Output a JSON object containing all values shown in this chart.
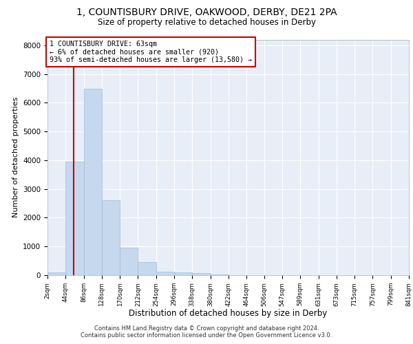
{
  "title_line1": "1, COUNTISBURY DRIVE, OAKWOOD, DERBY, DE21 2PA",
  "title_line2": "Size of property relative to detached houses in Derby",
  "xlabel": "Distribution of detached houses by size in Derby",
  "ylabel": "Number of detached properties",
  "footer_line1": "Contains HM Land Registry data © Crown copyright and database right 2024.",
  "footer_line2": "Contains public sector information licensed under the Open Government Licence v3.0.",
  "annotation_line1": "1 COUNTISBURY DRIVE: 63sqm",
  "annotation_line2": "← 6% of detached houses are smaller (920)",
  "annotation_line3": "93% of semi-detached houses are larger (13,580) →",
  "bar_edges": [
    2,
    44,
    86,
    128,
    170,
    212,
    254,
    296,
    338,
    380,
    422,
    464,
    506,
    547,
    589,
    631,
    673,
    715,
    757,
    799,
    841
  ],
  "bar_heights": [
    100,
    3950,
    6500,
    2600,
    950,
    450,
    130,
    90,
    60,
    30,
    10,
    5,
    3,
    2,
    2,
    2,
    2,
    2,
    2,
    2
  ],
  "bar_color": "#c5d8ee",
  "bar_edge_color": "#9bbcd8",
  "vline_x": 63,
  "vline_color": "#cc0000",
  "annotation_box_color": "#cc0000",
  "background_color": "#e8eef8",
  "grid_color": "#ffffff",
  "ylim": [
    0,
    8200
  ],
  "yticks": [
    0,
    1000,
    2000,
    3000,
    4000,
    5000,
    6000,
    7000,
    8000
  ]
}
